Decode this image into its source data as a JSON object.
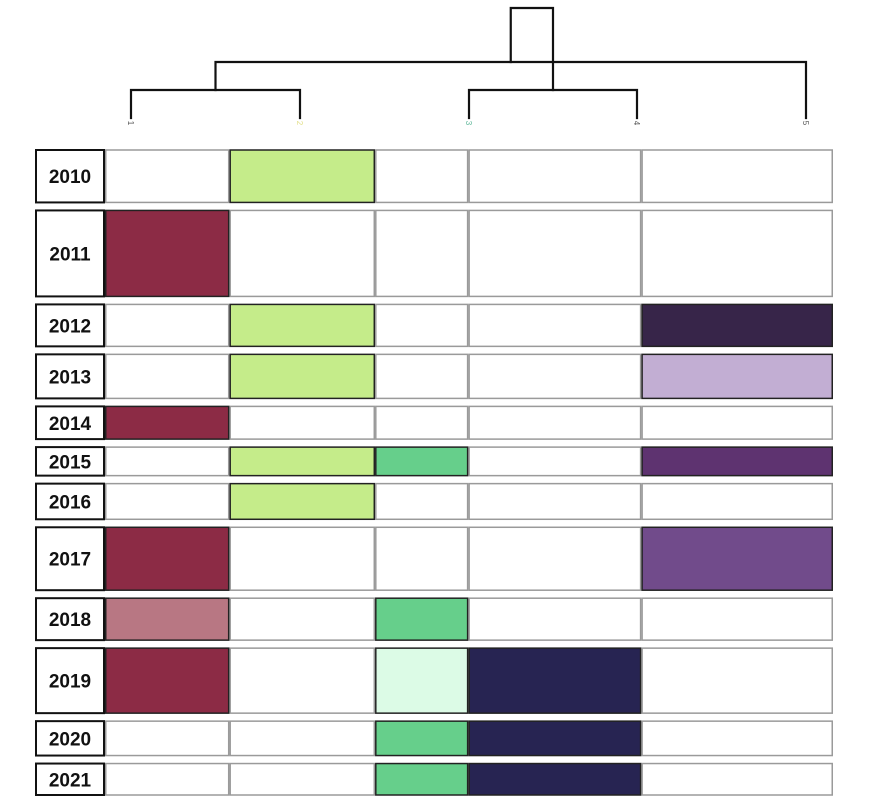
{
  "chart_data": {
    "type": "heatmap",
    "title": "",
    "xlabel": "",
    "ylabel": "",
    "columns": [
      "1",
      "2",
      "3",
      "4",
      "5"
    ],
    "column_label_colors": [
      "#555555",
      "#e3e08a",
      "#5fb89a",
      "#555555",
      "#555555"
    ],
    "rows": [
      "2010",
      "2011",
      "2012",
      "2013",
      "2014",
      "2015",
      "2016",
      "2017",
      "2018",
      "2019",
      "2020",
      "2021"
    ],
    "row_weights": [
      1.25,
      2.05,
      1.0,
      1.05,
      0.78,
      0.68,
      0.85,
      1.5,
      1.0,
      1.55,
      0.82,
      0.75
    ],
    "column_weights": [
      1.0,
      1.17,
      0.75,
      1.39,
      1.54
    ],
    "cells": [
      [
        "#ffffff",
        "#c5ec8a",
        "#ffffff",
        "#ffffff",
        "#ffffff"
      ],
      [
        "#8c2b45",
        "#ffffff",
        "#ffffff",
        "#ffffff",
        "#ffffff"
      ],
      [
        "#ffffff",
        "#c5ec8a",
        "#ffffff",
        "#ffffff",
        "#372549"
      ],
      [
        "#ffffff",
        "#c5ec8a",
        "#ffffff",
        "#ffffff",
        "#c2aed3"
      ],
      [
        "#8c2b45",
        "#ffffff",
        "#ffffff",
        "#ffffff",
        "#ffffff"
      ],
      [
        "#ffffff",
        "#c5ec8a",
        "#66cf8b",
        "#ffffff",
        "#5e3370"
      ],
      [
        "#ffffff",
        "#c5ec8a",
        "#ffffff",
        "#ffffff",
        "#ffffff"
      ],
      [
        "#8c2b45",
        "#ffffff",
        "#ffffff",
        "#ffffff",
        "#714b8b"
      ],
      [
        "#b87783",
        "#ffffff",
        "#66cf8b",
        "#ffffff",
        "#ffffff"
      ],
      [
        "#8c2b45",
        "#ffffff",
        "#dcfbe6",
        "#272452",
        "#ffffff"
      ],
      [
        "#ffffff",
        "#ffffff",
        "#66cf8b",
        "#272452",
        "#ffffff"
      ],
      [
        "#ffffff",
        "#ffffff",
        "#66cf8b",
        "#272452",
        "#ffffff"
      ]
    ],
    "dendrogram": {
      "merges": [
        [
          0,
          1
        ],
        [
          2,
          3
        ],
        [
          5,
          4
        ],
        [
          6,
          7
        ]
      ]
    },
    "grid": false,
    "legend": "none"
  }
}
